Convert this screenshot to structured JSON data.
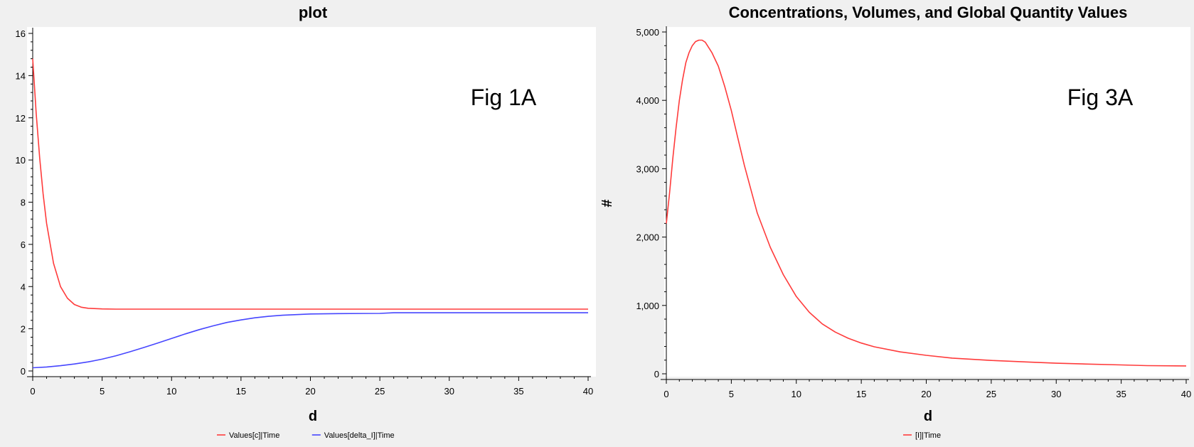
{
  "chart_data": [
    {
      "type": "line",
      "title": "plot",
      "xlabel": "d",
      "ylabel": "",
      "xlim": [
        0,
        40
      ],
      "ylim": [
        0,
        16
      ],
      "x_ticks": [
        "0",
        "5",
        "10",
        "15",
        "20",
        "25",
        "30",
        "35",
        "40"
      ],
      "y_ticks": [
        "0",
        "2",
        "4",
        "6",
        "8",
        "10",
        "12",
        "14",
        "16"
      ],
      "annotation": "Fig 1A",
      "grid": false,
      "legend_position": "bottom",
      "series": [
        {
          "name": "Values[c]|Time",
          "color": "#ff3b3b",
          "x": [
            0,
            0.25,
            0.5,
            0.75,
            1,
            1.5,
            2,
            2.5,
            3,
            3.5,
            4,
            5,
            6,
            8,
            10,
            15,
            20,
            25,
            30,
            35,
            40
          ],
          "y": [
            14.8,
            12.2,
            10.1,
            8.4,
            7.0,
            5.1,
            4.0,
            3.45,
            3.15,
            3.02,
            2.97,
            2.94,
            2.93,
            2.93,
            2.93,
            2.93,
            2.93,
            2.93,
            2.93,
            2.93,
            2.93
          ]
        },
        {
          "name": "Values[delta_I]|Time",
          "color": "#4646ff",
          "x": [
            0,
            1,
            2,
            3,
            4,
            5,
            6,
            7,
            8,
            9,
            10,
            11,
            12,
            13,
            14,
            15,
            16,
            17,
            18,
            19,
            20,
            22,
            25,
            26,
            30,
            35,
            40
          ],
          "y": [
            0.15,
            0.19,
            0.25,
            0.33,
            0.43,
            0.56,
            0.72,
            0.91,
            1.11,
            1.32,
            1.54,
            1.76,
            1.96,
            2.14,
            2.3,
            2.42,
            2.52,
            2.59,
            2.64,
            2.67,
            2.7,
            2.72,
            2.73,
            2.76,
            2.76,
            2.76,
            2.76
          ]
        }
      ]
    },
    {
      "type": "line",
      "title": "Concentrations, Volumes, and Global Quantity Values",
      "xlabel": "d",
      "ylabel": "#",
      "xlim": [
        0,
        40
      ],
      "ylim": [
        0,
        5000
      ],
      "x_ticks": [
        "0",
        "5",
        "10",
        "15",
        "20",
        "25",
        "30",
        "35",
        "40"
      ],
      "y_ticks": [
        "0",
        "1,000",
        "2,000",
        "3,000",
        "4,000",
        "5,000"
      ],
      "annotation": "Fig 3A",
      "grid": false,
      "legend_position": "bottom",
      "series": [
        {
          "name": "[I]|Time",
          "color": "#ff3b3b",
          "x": [
            0,
            0.25,
            0.5,
            0.75,
            1,
            1.25,
            1.5,
            1.75,
            2,
            2.25,
            2.5,
            2.75,
            3,
            3.5,
            4,
            4.5,
            5,
            5.5,
            6,
            6.5,
            7,
            8,
            9,
            10,
            11,
            12,
            13,
            14,
            15,
            16,
            18,
            20,
            22,
            25,
            28,
            30,
            32,
            35,
            37,
            40
          ],
          "y": [
            2200,
            2650,
            3150,
            3600,
            4000,
            4300,
            4550,
            4700,
            4800,
            4860,
            4880,
            4880,
            4850,
            4700,
            4500,
            4200,
            3850,
            3450,
            3050,
            2700,
            2350,
            1850,
            1450,
            1130,
            900,
            730,
            610,
            520,
            450,
            395,
            320,
            270,
            230,
            195,
            170,
            155,
            145,
            130,
            120,
            115
          ]
        }
      ]
    }
  ]
}
